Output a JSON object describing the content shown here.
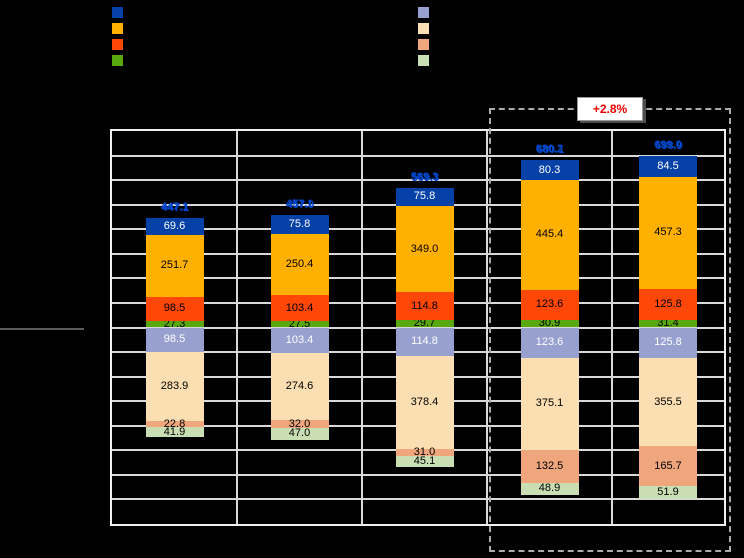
{
  "figure": {
    "background": "#000000",
    "legend": {
      "column1": [
        {
          "name": "dark-blue",
          "color": "#0641A8"
        },
        {
          "name": "amber",
          "color": "#FFB000"
        },
        {
          "name": "orange-red",
          "color": "#FF4708"
        },
        {
          "name": "green",
          "color": "#5AA80F"
        }
      ],
      "column2": [
        {
          "name": "periwinkle",
          "color": "#97A0CE"
        },
        {
          "name": "peach",
          "color": "#FBDFB2"
        },
        {
          "name": "salmon",
          "color": "#F0A67C"
        },
        {
          "name": "light-green",
          "color": "#C9DFB3"
        }
      ]
    },
    "colors": {
      "gridline": "#D9D9D9",
      "plot_border": "#EFEFEF",
      "dashed_box": "#ABABAB",
      "total_label": "#0047CB",
      "annotation": "#EE0000",
      "axis_divider": "#5C5C5C"
    }
  },
  "chart_data": {
    "type": "bar",
    "subtype": "diverging-stacked",
    "categories": [
      "",
      "",
      "",
      "",
      ""
    ],
    "series_up_from_baseline": [
      {
        "name": "green",
        "color": "#5AA80F",
        "label_color": "#000000",
        "values": [
          27.3,
          27.5,
          29.7,
          30.9,
          31.4
        ]
      },
      {
        "name": "orange-red",
        "color": "#FF4708",
        "label_color": "#000000",
        "values": [
          98.5,
          103.4,
          114.8,
          123.6,
          125.8
        ]
      },
      {
        "name": "amber",
        "color": "#FFB000",
        "label_color": "#000000",
        "values": [
          251.7,
          250.4,
          349.0,
          445.4,
          457.3
        ]
      },
      {
        "name": "dark-blue",
        "color": "#0641A8",
        "label_color": "#FFFFFF",
        "values": [
          69.6,
          75.8,
          75.8,
          80.3,
          84.5
        ]
      }
    ],
    "series_down_from_baseline": [
      {
        "name": "periwinkle",
        "color": "#97A0CE",
        "label_color": "#FFFFFF",
        "values": [
          98.5,
          103.4,
          114.8,
          123.6,
          125.8
        ]
      },
      {
        "name": "peach",
        "color": "#FBDFB2",
        "label_color": "#000000",
        "values": [
          283.9,
          274.6,
          378.4,
          375.1,
          355.5
        ]
      },
      {
        "name": "salmon",
        "color": "#F0A67C",
        "label_color": "#000000",
        "values": [
          22.8,
          32.0,
          31.0,
          132.5,
          165.7
        ]
      },
      {
        "name": "light-green",
        "color": "#C9DFB3",
        "label_color": "#000000",
        "values": [
          41.9,
          47.0,
          45.1,
          48.9,
          51.9
        ]
      }
    ],
    "totals_up": [
      447.1,
      457.1,
      569.3,
      680.2,
      699.0
    ],
    "totals_down": [
      447.1,
      457.0,
      569.3,
      680.1,
      698.9
    ],
    "annotation": "+2.8%",
    "highlighted_categories": [
      3,
      4
    ],
    "layout_hints": {
      "gridline_step_units": 100,
      "rows_above_baseline": 8,
      "rows_below_baseline": 8,
      "grid": true,
      "legend_position": "top",
      "axis_labels_visible": false
    }
  }
}
